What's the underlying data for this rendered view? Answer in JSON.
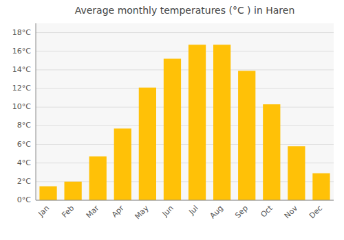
{
  "chart_data": {
    "type": "bar",
    "title": "Average monthly temperatures (°C ) in Haren",
    "categories": [
      "Jan",
      "Feb",
      "Mar",
      "Apr",
      "May",
      "Jun",
      "Jul",
      "Aug",
      "Sep",
      "Oct",
      "Nov",
      "Dec"
    ],
    "values": [
      1.5,
      2.0,
      4.7,
      7.7,
      12.1,
      15.2,
      16.7,
      16.7,
      13.9,
      10.3,
      5.8,
      2.9
    ],
    "color": "#FFC107",
    "ylim": [
      0,
      19
    ],
    "yticks": [
      {
        "value": 0,
        "label": "0°C"
      },
      {
        "value": 2,
        "label": "2°C"
      },
      {
        "value": 4,
        "label": "4°C"
      },
      {
        "value": 6,
        "label": "6°C"
      },
      {
        "value": 8,
        "label": "8°C"
      },
      {
        "value": 10,
        "label": "10°C"
      },
      {
        "value": 12,
        "label": "12°C"
      },
      {
        "value": 14,
        "label": "14°C"
      },
      {
        "value": 16,
        "label": "16°C"
      },
      {
        "value": 18,
        "label": "18°C"
      }
    ],
    "grid": true
  }
}
